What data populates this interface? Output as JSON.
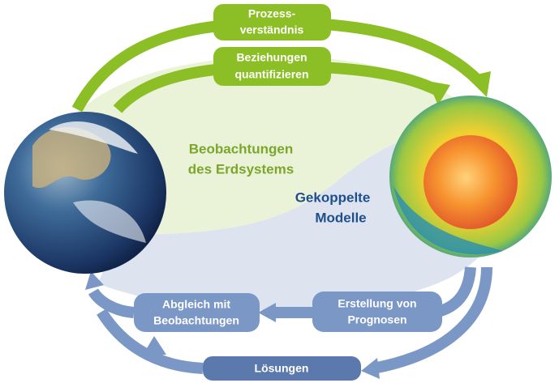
{
  "boxes": [
    {
      "lines": [
        "Prozess-",
        "verständnis"
      ]
    },
    {
      "lines": [
        "Beziehungen",
        "quantifizieren"
      ]
    },
    {
      "lines": [
        "Erstellung von",
        "Prognosen"
      ]
    },
    {
      "lines": [
        "Abgleich mit",
        "Beobachtungen"
      ]
    },
    {
      "lines": [
        "Lösungen"
      ]
    }
  ],
  "labels": {
    "observations": [
      "Beobachtungen",
      "des Erdsystems"
    ],
    "models": [
      "Gekoppelte",
      "Modelle"
    ]
  }
}
